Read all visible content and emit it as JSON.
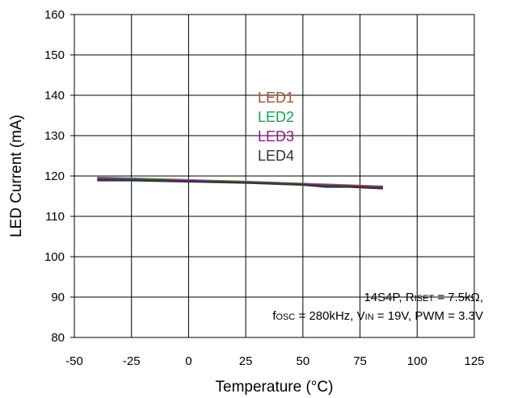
{
  "chart_data": {
    "type": "line",
    "xlabel": "Temperature (°C)",
    "ylabel": "LED Current (mA)",
    "xlim": [
      -50,
      125
    ],
    "ylim": [
      80,
      160
    ],
    "xticks": [
      -50,
      -25,
      0,
      25,
      50,
      75,
      100,
      125
    ],
    "yticks": [
      80,
      90,
      100,
      110,
      120,
      130,
      140,
      150,
      160
    ],
    "grid": true,
    "legend_position": "center",
    "series": [
      {
        "name": "LED1",
        "color": "#a0522d",
        "x": [
          -40,
          -25,
          0,
          25,
          50,
          65,
          85
        ],
        "y": [
          119.6,
          119.4,
          119.0,
          118.6,
          118.1,
          117.8,
          117.4
        ]
      },
      {
        "name": "LED2",
        "color": "#1aa05a",
        "x": [
          -40,
          -25,
          0,
          25,
          50,
          65,
          85
        ],
        "y": [
          119.5,
          119.3,
          118.9,
          118.5,
          118.0,
          117.7,
          117.3
        ]
      },
      {
        "name": "LED3",
        "color": "#8b1a8b",
        "x": [
          -40,
          -25,
          0,
          25,
          50,
          65,
          85
        ],
        "y": [
          119.3,
          119.1,
          118.8,
          118.4,
          117.9,
          117.6,
          117.2
        ]
      },
      {
        "name": "LED4",
        "color": "#333333",
        "x": [
          -40,
          -25,
          0,
          25,
          50,
          60,
          70,
          85
        ],
        "y": [
          118.9,
          118.9,
          118.6,
          118.3,
          117.8,
          117.3,
          117.3,
          116.9
        ]
      }
    ],
    "annotation": {
      "line1": {
        "pre": "14S4P, R",
        "sub": "ISET",
        "post": " = 7.5kΩ,"
      },
      "line2": [
        {
          "text": "f",
          "sub": false
        },
        {
          "text": "OSC",
          "sub": true
        },
        {
          "text": " = 280kHz, V",
          "sub": false
        },
        {
          "text": "IN",
          "sub": true
        },
        {
          "text": " = 19V, PWM = 3.3V",
          "sub": false
        }
      ]
    }
  }
}
